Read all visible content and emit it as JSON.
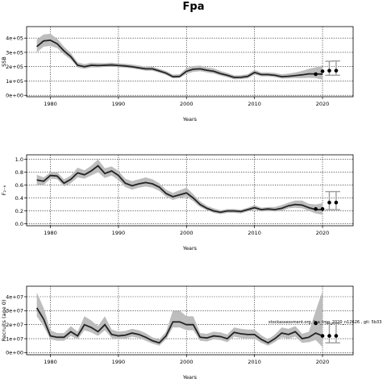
{
  "chart_data": {
    "title": "Fpa",
    "annotation": "stockassessment.org, fpa_tmp_2020_n12626 , git: 5b33",
    "panels": [
      {
        "type": "line",
        "ylabel": "SSB",
        "xlabel": "Years",
        "xlim": [
          1976.5,
          2024.5
        ],
        "ylim": [
          -10000,
          480000
        ],
        "yticks": [
          0,
          100000,
          200000,
          300000,
          400000
        ],
        "ytick_labels": [
          "0e+00",
          "1e+05",
          "2e+05",
          "3e+05",
          "4e+05"
        ],
        "xticks": [
          1980,
          1990,
          2000,
          2010,
          2020
        ],
        "xtick_labels": [
          "1980",
          "1990",
          "2000",
          "2010",
          "2020"
        ],
        "grid": true,
        "x": [
          1978,
          1979,
          1980,
          1981,
          1982,
          1983,
          1984,
          1985,
          1986,
          1987,
          1988,
          1989,
          1990,
          1991,
          1992,
          1993,
          1994,
          1995,
          1996,
          1997,
          1998,
          1999,
          2000,
          2001,
          2002,
          2003,
          2004,
          2005,
          2006,
          2007,
          2008,
          2009,
          2010,
          2011,
          2012,
          2013,
          2014,
          2015,
          2016,
          2017,
          2018,
          2019,
          2020
        ],
        "y": [
          340000,
          380000,
          385000,
          360000,
          310000,
          270000,
          210000,
          200000,
          210000,
          208000,
          210000,
          212000,
          208000,
          205000,
          200000,
          192000,
          185000,
          185000,
          170000,
          155000,
          130000,
          132000,
          168000,
          182000,
          185000,
          175000,
          168000,
          152000,
          140000,
          125000,
          126000,
          132000,
          160000,
          145000,
          145000,
          140000,
          130000,
          133000,
          138000,
          143000,
          150000,
          150000,
          148000
        ],
        "lower": [
          300000,
          340000,
          345000,
          330000,
          285000,
          250000,
          195000,
          185000,
          195000,
          195000,
          198000,
          200000,
          196000,
          193000,
          188000,
          180000,
          172000,
          172000,
          158000,
          142000,
          118000,
          120000,
          150000,
          164000,
          168000,
          160000,
          152000,
          138000,
          126000,
          112000,
          113000,
          118000,
          145000,
          132000,
          132000,
          127000,
          117000,
          118000,
          120000,
          120000,
          122000,
          120000,
          110000
        ],
        "upper": [
          390000,
          425000,
          430000,
          395000,
          340000,
          295000,
          230000,
          218000,
          228000,
          225000,
          225000,
          228000,
          224000,
          220000,
          215000,
          208000,
          200000,
          200000,
          185000,
          170000,
          145000,
          148000,
          190000,
          205000,
          208000,
          195000,
          188000,
          170000,
          156000,
          140000,
          141000,
          148000,
          178000,
          160000,
          160000,
          156000,
          147000,
          152000,
          160000,
          170000,
          185000,
          195000,
          210000
        ],
        "points": [
          {
            "x": 2019,
            "y": 148000
          },
          {
            "x": 2020,
            "y": 168000
          },
          {
            "x": 2021,
            "y": 172000
          },
          {
            "x": 2022,
            "y": 172000
          }
        ],
        "errorbars": [
          {
            "x": 2021,
            "lo": 140000,
            "hi": 238000
          },
          {
            "x": 2022,
            "lo": 140000,
            "hi": 240000
          }
        ]
      },
      {
        "type": "line",
        "ylabel": "F₂₋₆",
        "xlabel": "Years",
        "xlim": [
          1976.5,
          2024.5
        ],
        "ylim": [
          -0.03,
          1.07
        ],
        "yticks": [
          0.0,
          0.2,
          0.4,
          0.6,
          0.8,
          1.0
        ],
        "ytick_labels": [
          "0.0",
          "0.2",
          "0.4",
          "0.6",
          "0.8",
          "1.0"
        ],
        "xticks": [
          1980,
          1990,
          2000,
          2010,
          2020
        ],
        "xtick_labels": [
          "1980",
          "1990",
          "2000",
          "2010",
          "2020"
        ],
        "grid": true,
        "x": [
          1978,
          1979,
          1980,
          1981,
          1982,
          1983,
          1984,
          1985,
          1986,
          1987,
          1988,
          1989,
          1990,
          1991,
          1992,
          1993,
          1994,
          1995,
          1996,
          1997,
          1998,
          1999,
          2000,
          2001,
          2002,
          2003,
          2004,
          2005,
          2006,
          2007,
          2008,
          2009,
          2010,
          2011,
          2012,
          2013,
          2014,
          2015,
          2016,
          2017,
          2018,
          2019,
          2020
        ],
        "y": [
          0.68,
          0.66,
          0.75,
          0.74,
          0.63,
          0.69,
          0.79,
          0.76,
          0.82,
          0.9,
          0.78,
          0.82,
          0.75,
          0.63,
          0.59,
          0.62,
          0.64,
          0.62,
          0.57,
          0.47,
          0.42,
          0.45,
          0.48,
          0.4,
          0.3,
          0.24,
          0.2,
          0.18,
          0.2,
          0.2,
          0.19,
          0.22,
          0.25,
          0.22,
          0.23,
          0.22,
          0.24,
          0.28,
          0.3,
          0.29,
          0.25,
          0.22,
          0.22
        ],
        "lower": [
          0.6,
          0.6,
          0.7,
          0.69,
          0.58,
          0.63,
          0.72,
          0.7,
          0.75,
          0.8,
          0.71,
          0.75,
          0.68,
          0.57,
          0.53,
          0.56,
          0.58,
          0.56,
          0.51,
          0.42,
          0.37,
          0.4,
          0.42,
          0.35,
          0.26,
          0.21,
          0.17,
          0.15,
          0.17,
          0.17,
          0.16,
          0.19,
          0.22,
          0.19,
          0.2,
          0.19,
          0.2,
          0.24,
          0.25,
          0.24,
          0.2,
          0.16,
          0.14
        ],
        "upper": [
          0.76,
          0.72,
          0.8,
          0.8,
          0.69,
          0.75,
          0.87,
          0.83,
          0.9,
          1.0,
          0.86,
          0.89,
          0.82,
          0.7,
          0.66,
          0.69,
          0.72,
          0.69,
          0.63,
          0.53,
          0.48,
          0.52,
          0.56,
          0.46,
          0.35,
          0.28,
          0.24,
          0.21,
          0.23,
          0.23,
          0.22,
          0.25,
          0.29,
          0.25,
          0.26,
          0.26,
          0.29,
          0.33,
          0.36,
          0.36,
          0.31,
          0.3,
          0.32
        ],
        "points": [
          {
            "x": 2019,
            "y": 0.23
          },
          {
            "x": 2020,
            "y": 0.23
          },
          {
            "x": 2021,
            "y": 0.33
          },
          {
            "x": 2022,
            "y": 0.33
          }
        ],
        "errorbars": [
          {
            "x": 2021,
            "lo": 0.22,
            "hi": 0.5
          },
          {
            "x": 2022,
            "lo": 0.22,
            "hi": 0.5
          }
        ]
      },
      {
        "type": "line",
        "ylabel": "Recruits (age 0)",
        "xlabel": "Years",
        "xlim": [
          1976.5,
          2024.5
        ],
        "ylim": [
          -1500000,
          47500000
        ],
        "yticks": [
          0,
          10000000,
          20000000,
          30000000,
          40000000
        ],
        "ytick_labels": [
          "0e+00",
          "1e+07",
          "2e+07",
          "3e+07",
          "4e+07"
        ],
        "xticks": [
          1980,
          1990,
          2000,
          2010,
          2020
        ],
        "xtick_labels": [
          "1980",
          "1990",
          "2000",
          "2010",
          "2020"
        ],
        "grid": true,
        "x": [
          1978,
          1979,
          1980,
          1981,
          1982,
          1983,
          1984,
          1985,
          1986,
          1987,
          1988,
          1989,
          1990,
          1991,
          1992,
          1993,
          1994,
          1995,
          1996,
          1997,
          1998,
          1999,
          2000,
          2001,
          2002,
          2003,
          2004,
          2005,
          2006,
          2007,
          2008,
          2009,
          2010,
          2011,
          2012,
          2013,
          2014,
          2015,
          2016,
          2017,
          2018,
          2019,
          2020
        ],
        "y": [
          32000000,
          24000000,
          12000000,
          11000000,
          11000000,
          15000000,
          12000000,
          20000000,
          18000000,
          15000000,
          20000000,
          13000000,
          12000000,
          12500000,
          14000000,
          13000000,
          11000000,
          8500000,
          7000000,
          12000000,
          22000000,
          22000000,
          20000000,
          20000000,
          11000000,
          10500000,
          12000000,
          11500000,
          10000000,
          14500000,
          13500000,
          13000000,
          13000000,
          9500000,
          7000000,
          10000000,
          14000000,
          13000000,
          15000000,
          10000000,
          11000000,
          14000000,
          12000000
        ],
        "lower": [
          26000000,
          19000000,
          9500000,
          8500000,
          8500000,
          12000000,
          9500000,
          16000000,
          14500000,
          12000000,
          16000000,
          10500000,
          9500000,
          10000000,
          11500000,
          10500000,
          8500000,
          6500000,
          5000000,
          9500000,
          18000000,
          18000000,
          16000000,
          16000000,
          8500000,
          8000000,
          9500000,
          9000000,
          7500000,
          11500000,
          10500000,
          10000000,
          10000000,
          7000000,
          5000000,
          7500000,
          11000000,
          10000000,
          11500000,
          7000000,
          7500000,
          9000000,
          4000000
        ],
        "upper": [
          43000000,
          32000000,
          16000000,
          14000000,
          14000000,
          19000000,
          15000000,
          26000000,
          23000000,
          19000000,
          26000000,
          16500000,
          15000000,
          15500000,
          17000000,
          16000000,
          14000000,
          11000000,
          9500000,
          15000000,
          30000000,
          30000000,
          26000000,
          26000000,
          14000000,
          13500000,
          15000000,
          14500000,
          13000000,
          18000000,
          17000000,
          16500000,
          16500000,
          12500000,
          9500000,
          13000000,
          18000000,
          17000000,
          19000000,
          13500000,
          15000000,
          30000000,
          44000000
        ],
        "points": [
          {
            "x": 2019,
            "y": 21000000
          },
          {
            "x": 2020,
            "y": 12000000
          },
          {
            "x": 2021,
            "y": 12000000
          },
          {
            "x": 2022,
            "y": 12000000
          }
        ],
        "errorbars": [
          {
            "x": 2021,
            "lo": 7000000,
            "hi": 21000000
          },
          {
            "x": 2022,
            "lo": 7000000,
            "hi": 21000000
          }
        ]
      }
    ]
  }
}
